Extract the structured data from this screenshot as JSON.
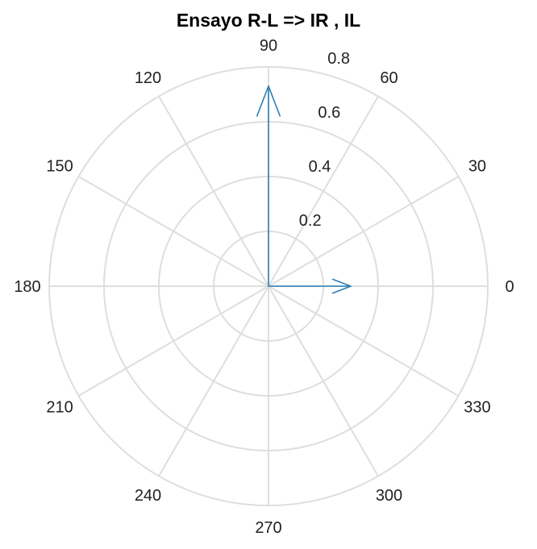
{
  "chart_data": {
    "type": "polar",
    "title": "Ensayo R-L => IR , IL",
    "rlim": [
      0,
      0.8
    ],
    "radial_ticks": [
      0.2,
      0.4,
      0.6,
      0.8
    ],
    "radial_tick_labels": [
      "0.2",
      "0.4",
      "0.6",
      "0.8"
    ],
    "angle_ticks": [
      0,
      30,
      60,
      90,
      120,
      150,
      180,
      210,
      240,
      270,
      300,
      330
    ],
    "angle_tick_labels": [
      "0",
      "30",
      "60",
      "90",
      "120",
      "150",
      "180",
      "210",
      "240",
      "270",
      "300",
      "330"
    ],
    "angle_unit": "degrees",
    "grid": true,
    "series": [
      {
        "angle": 0,
        "magnitude": 0.3,
        "color": "#2e7fb5"
      },
      {
        "angle": 90,
        "magnitude": 0.73,
        "color": "#2e7fb5"
      }
    ]
  }
}
